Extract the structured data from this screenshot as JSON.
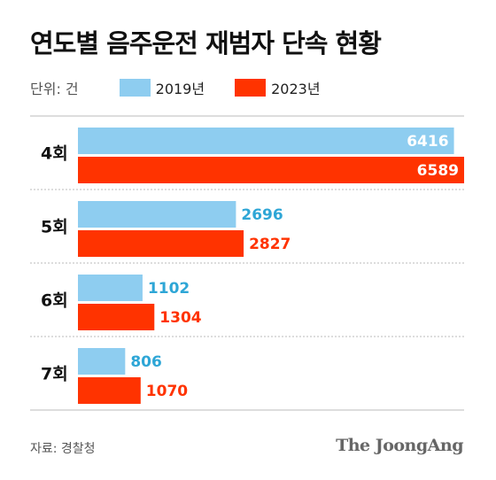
{
  "title": "연도별 음주운전 재범자 단속 현황",
  "unit_label": "단위: 건",
  "source": "자료: 경찰청",
  "brand": "The JoongAng",
  "colors": {
    "series_2019": "#8ecdf0",
    "series_2023": "#ff3300",
    "label_2019": "#2ea6d6",
    "label_2023": "#ff3300",
    "divider": "#bbbbbb"
  },
  "chart_data": {
    "type": "bar",
    "orientation": "horizontal",
    "categories": [
      "4회",
      "5회",
      "6회",
      "7회"
    ],
    "series": [
      {
        "name": "2019년",
        "values": [
          6416,
          2696,
          1102,
          806
        ]
      },
      {
        "name": "2023년",
        "values": [
          6589,
          2827,
          1304,
          1070
        ]
      }
    ],
    "xlim": [
      0,
      6589
    ],
    "grid": false,
    "legend_position": "top-left"
  }
}
